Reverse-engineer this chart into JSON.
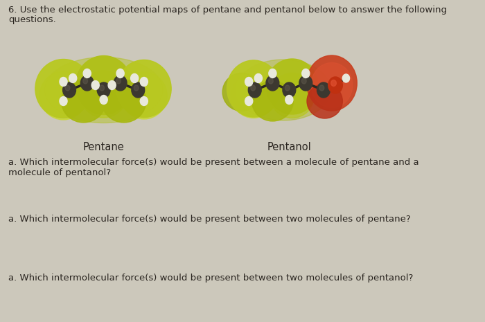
{
  "background_color": "#ccc8bb",
  "top_text_line1": "6. Use the electrostatic potential maps of pentane and pentanol below to answer the following",
  "top_text_line2": "questions.",
  "label_pentane": "Pentane",
  "label_pentanol": "Pentanol",
  "question1": "a. Which intermolecular force(s) would be present between a molecule of pentane and a\nmolecule of pentanol?",
  "question2": "a. Which intermolecular force(s) would be present between two molecules of pentane?",
  "question3": "a. Which intermolecular force(s) would be present between two molecules of pentanol?",
  "font_size_body": 9.5,
  "font_size_label": 10.5,
  "text_color": "#2a2520",
  "yg1": "#c8cc30",
  "yg2": "#a0aa10",
  "yg3": "#8a9a08",
  "yg_dark": "#6a7a05",
  "red_blob": "#cc4422",
  "red_blob2": "#b03010",
  "dark_gray": "#3c3830",
  "dark_gray2": "#2a2820",
  "white_h": "#e8e8dc",
  "cream_h": "#d8d8c8"
}
